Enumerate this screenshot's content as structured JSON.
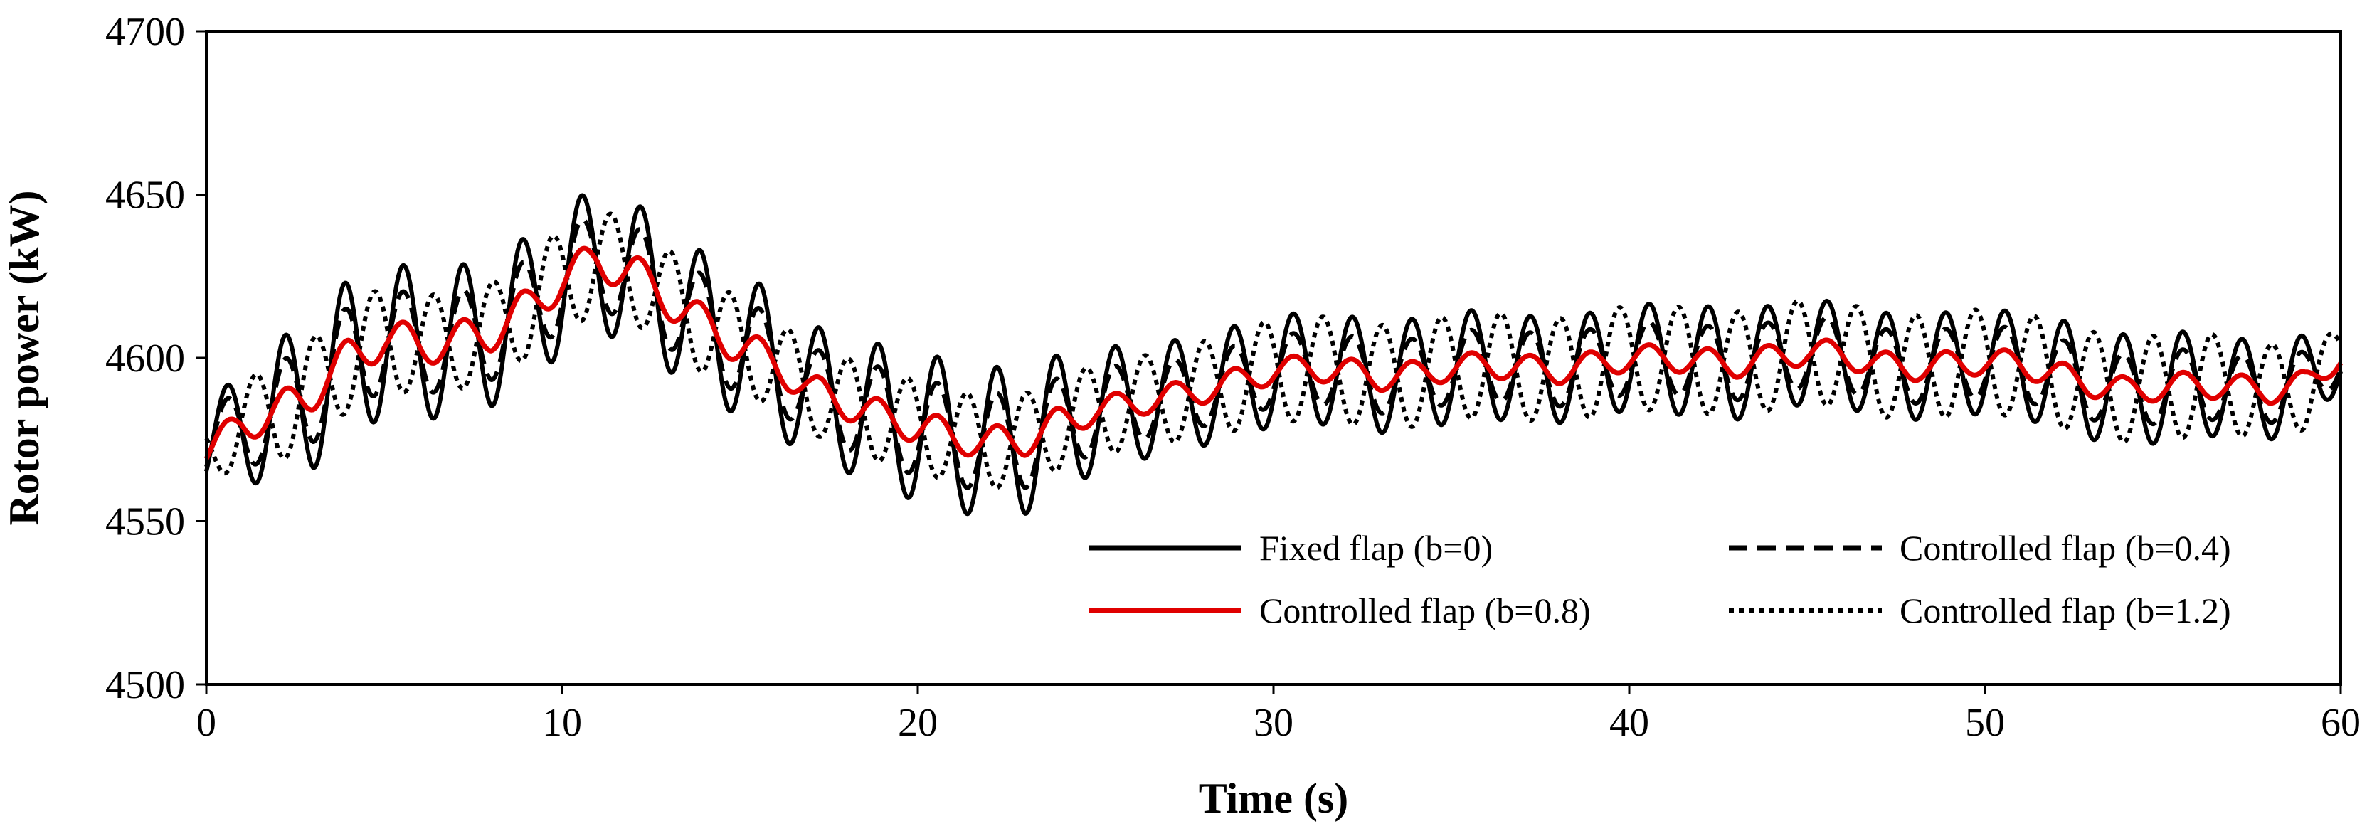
{
  "chart_data": {
    "type": "line",
    "title": "",
    "xlabel": "Time (s)",
    "ylabel": "Rotor power (kW)",
    "xlim": [
      0,
      60
    ],
    "ylim": [
      4500,
      4700
    ],
    "x_ticks": [
      0,
      10,
      20,
      30,
      40,
      50,
      60
    ],
    "y_ticks": [
      4500,
      4550,
      4600,
      4650,
      4700
    ],
    "x_tick_labels": [
      "0",
      "10",
      "20",
      "30",
      "40",
      "50",
      "60"
    ],
    "y_tick_labels": [
      "4500",
      "4550",
      "4600",
      "4650",
      "4700"
    ],
    "grid": false,
    "legend_position": "bottom-right",
    "period_s": 1.667,
    "envelope_t": [
      0,
      1,
      2,
      3,
      4,
      5,
      6,
      7,
      8,
      9,
      10,
      11,
      12,
      13,
      14,
      15,
      16,
      17,
      18,
      19,
      20,
      21,
      22,
      23,
      24,
      25,
      26,
      27,
      28,
      29,
      30,
      31,
      32,
      33,
      34,
      35,
      36,
      37,
      38,
      39,
      40,
      41,
      42,
      43,
      44,
      45,
      46,
      47,
      48,
      49,
      50,
      51,
      52,
      53,
      54,
      55,
      56,
      57,
      58,
      59,
      60
    ],
    "mean_power": [
      4571,
      4580,
      4583,
      4590,
      4600,
      4606,
      4604,
      4605,
      4608,
      4615,
      4624,
      4630,
      4626,
      4618,
      4610,
      4604,
      4598,
      4590,
      4586,
      4582,
      4579,
      4576,
      4574,
      4575,
      4580,
      4584,
      4586,
      4588,
      4590,
      4593,
      4596,
      4597,
      4596,
      4594,
      4595,
      4597,
      4598,
      4597,
      4596,
      4598,
      4600,
      4600,
      4599,
      4598,
      4600,
      4602,
      4601,
      4598,
      4597,
      4598,
      4599,
      4598,
      4595,
      4592,
      4590,
      4591,
      4592,
      4591,
      4590,
      4592,
      4600
    ],
    "series": [
      {
        "name": "Fixed flap (b=0)",
        "color": "#000000",
        "dash": "solid",
        "amplitude_kw": [
          12,
          18,
          22,
          24,
          24,
          24,
          23,
          23,
          23,
          22,
          23,
          22,
          22,
          22,
          22,
          22,
          22,
          20,
          21,
          22,
          23,
          23,
          23,
          23,
          21,
          19,
          18,
          17,
          17,
          17,
          17,
          17,
          17,
          17,
          17,
          17,
          17,
          16,
          16,
          16,
          16,
          17,
          17,
          17,
          16,
          16,
          16,
          16,
          16,
          16,
          16,
          16,
          17,
          17,
          17,
          17,
          16,
          15,
          15,
          15,
          8
        ]
      },
      {
        "name": "Controlled flap (b=0.4)",
        "color": "#000000",
        "dash": "dashed",
        "amplitude_kw": [
          9,
          13,
          15,
          16,
          16,
          16,
          15,
          15,
          15,
          15,
          15,
          15,
          15,
          15,
          15,
          15,
          14,
          13,
          14,
          15,
          15,
          15,
          15,
          15,
          14,
          13,
          12,
          11,
          11,
          11,
          11,
          11,
          11,
          11,
          11,
          11,
          11,
          11,
          11,
          11,
          11,
          11,
          11,
          11,
          11,
          11,
          11,
          11,
          11,
          11,
          11,
          11,
          11,
          11,
          11,
          11,
          11,
          10,
          10,
          10,
          6
        ]
      },
      {
        "name": "Controlled flap (b=0.8)",
        "color": "#e00000",
        "dash": "solid",
        "amplitude_kw": [
          4,
          5,
          6,
          6,
          6,
          6,
          6,
          6,
          6,
          6,
          6,
          6,
          6,
          6,
          6,
          6,
          5,
          5,
          5,
          5,
          5,
          5,
          5,
          5,
          5,
          4,
          4,
          4,
          4,
          4,
          4,
          4,
          4,
          4,
          4,
          4,
          4,
          4,
          4,
          4,
          4,
          4,
          4,
          4,
          4,
          4,
          4,
          4,
          4,
          4,
          4,
          4,
          4,
          4,
          4,
          4,
          4,
          4,
          4,
          4,
          3
        ]
      },
      {
        "name": "Controlled flap (b=1.2)",
        "color": "#000000",
        "dash": "dotted",
        "amplitude_kw": [
          -9,
          -13,
          -15,
          -16,
          -16,
          -16,
          -15,
          -15,
          -15,
          -15,
          -16,
          -16,
          -15,
          -15,
          -15,
          -14,
          -14,
          -13,
          -14,
          -14,
          -14,
          -14,
          -14,
          -14,
          -14,
          -14,
          -14,
          -14,
          -15,
          -15,
          -16,
          -16,
          -16,
          -16,
          -16,
          -16,
          -16,
          -16,
          -16,
          -16,
          -16,
          -16,
          -16,
          -16,
          -16,
          -16,
          -16,
          -16,
          -16,
          -16,
          -16,
          -16,
          -16,
          -16,
          -16,
          -16,
          -16,
          -15,
          -14,
          -14,
          -8
        ]
      }
    ]
  }
}
